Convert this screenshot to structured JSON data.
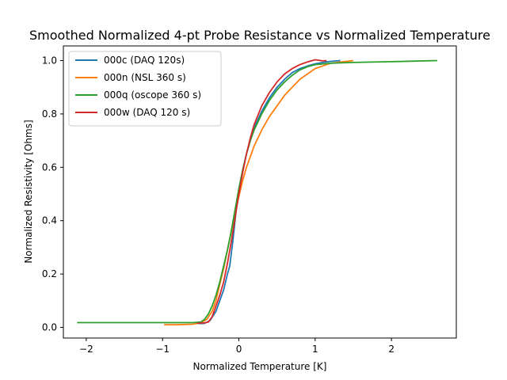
{
  "chart_data": {
    "type": "line",
    "title": "Smoothed Normalized 4-pt Probe Resistance vs Normalized Temperature",
    "xlabel": "Normalized Temperature [K]",
    "ylabel": "Normalized Resistivity [Ohms]",
    "xlim": [
      -2.3,
      2.85
    ],
    "ylim": [
      -0.04,
      1.055
    ],
    "xticks": [
      -2,
      -1,
      0,
      1,
      2
    ],
    "xtick_labels": [
      "−2",
      "−1",
      "0",
      "1",
      "2"
    ],
    "yticks": [
      0.0,
      0.2,
      0.4,
      0.6,
      0.8,
      1.0
    ],
    "ytick_labels": [
      "0.0",
      "0.2",
      "0.4",
      "0.6",
      "0.8",
      "1.0"
    ],
    "grid": false,
    "legend_position": "top-left",
    "series": [
      {
        "name": "000c (DAQ 120s)",
        "color": "#1f77b4",
        "points": [
          [
            -0.52,
            0.014
          ],
          [
            -0.45,
            0.015
          ],
          [
            -0.38,
            0.025
          ],
          [
            -0.3,
            0.06
          ],
          [
            -0.25,
            0.1
          ],
          [
            -0.2,
            0.14
          ],
          [
            -0.15,
            0.2
          ],
          [
            -0.12,
            0.23
          ],
          [
            -0.08,
            0.32
          ],
          [
            -0.05,
            0.4
          ],
          [
            -0.02,
            0.48
          ],
          [
            0.02,
            0.54
          ],
          [
            0.06,
            0.6
          ],
          [
            0.1,
            0.65
          ],
          [
            0.15,
            0.7
          ],
          [
            0.22,
            0.76
          ],
          [
            0.3,
            0.81
          ],
          [
            0.4,
            0.86
          ],
          [
            0.5,
            0.9
          ],
          [
            0.6,
            0.93
          ],
          [
            0.7,
            0.955
          ],
          [
            0.8,
            0.97
          ],
          [
            0.9,
            0.98
          ],
          [
            1.0,
            0.988
          ],
          [
            1.1,
            0.993
          ],
          [
            1.2,
            0.997
          ],
          [
            1.33,
            1.0
          ]
        ]
      },
      {
        "name": "000n (NSL 360 s)",
        "color": "#ff7f0e",
        "points": [
          [
            -0.98,
            0.01
          ],
          [
            -0.8,
            0.01
          ],
          [
            -0.6,
            0.012
          ],
          [
            -0.5,
            0.018
          ],
          [
            -0.42,
            0.03
          ],
          [
            -0.35,
            0.06
          ],
          [
            -0.3,
            0.1
          ],
          [
            -0.25,
            0.16
          ],
          [
            -0.2,
            0.22
          ],
          [
            -0.15,
            0.29
          ],
          [
            -0.1,
            0.36
          ],
          [
            -0.05,
            0.43
          ],
          [
            0.0,
            0.49
          ],
          [
            0.05,
            0.55
          ],
          [
            0.1,
            0.6
          ],
          [
            0.15,
            0.64
          ],
          [
            0.2,
            0.68
          ],
          [
            0.3,
            0.74
          ],
          [
            0.4,
            0.79
          ],
          [
            0.5,
            0.83
          ],
          [
            0.6,
            0.87
          ],
          [
            0.7,
            0.9
          ],
          [
            0.8,
            0.93
          ],
          [
            0.9,
            0.95
          ],
          [
            1.0,
            0.97
          ],
          [
            1.1,
            0.98
          ],
          [
            1.2,
            0.99
          ],
          [
            1.35,
            0.995
          ],
          [
            1.5,
            1.0
          ]
        ]
      },
      {
        "name": "000q (oscope 360 s)",
        "color": "#2ca02c",
        "points": [
          [
            -2.12,
            0.018
          ],
          [
            -1.5,
            0.018
          ],
          [
            -1.0,
            0.018
          ],
          [
            -0.6,
            0.018
          ],
          [
            -0.5,
            0.02
          ],
          [
            -0.45,
            0.03
          ],
          [
            -0.4,
            0.05
          ],
          [
            -0.35,
            0.08
          ],
          [
            -0.3,
            0.12
          ],
          [
            -0.25,
            0.17
          ],
          [
            -0.2,
            0.23
          ],
          [
            -0.15,
            0.29
          ],
          [
            -0.1,
            0.36
          ],
          [
            -0.05,
            0.44
          ],
          [
            0.0,
            0.52
          ],
          [
            0.05,
            0.59
          ],
          [
            0.1,
            0.65
          ],
          [
            0.15,
            0.7
          ],
          [
            0.2,
            0.74
          ],
          [
            0.3,
            0.8
          ],
          [
            0.4,
            0.85
          ],
          [
            0.5,
            0.89
          ],
          [
            0.6,
            0.92
          ],
          [
            0.7,
            0.945
          ],
          [
            0.8,
            0.965
          ],
          [
            0.9,
            0.977
          ],
          [
            1.0,
            0.985
          ],
          [
            1.2,
            0.99
          ],
          [
            1.5,
            0.993
          ],
          [
            2.0,
            0.996
          ],
          [
            2.6,
            1.0
          ]
        ]
      },
      {
        "name": "000w (DAQ 120 s)",
        "color": "#d62728",
        "points": [
          [
            -0.55,
            0.015
          ],
          [
            -0.45,
            0.017
          ],
          [
            -0.4,
            0.02
          ],
          [
            -0.35,
            0.04
          ],
          [
            -0.3,
            0.08
          ],
          [
            -0.25,
            0.12
          ],
          [
            -0.2,
            0.17
          ],
          [
            -0.15,
            0.24
          ],
          [
            -0.1,
            0.32
          ],
          [
            -0.05,
            0.41
          ],
          [
            0.0,
            0.5
          ],
          [
            0.05,
            0.58
          ],
          [
            0.1,
            0.65
          ],
          [
            0.15,
            0.71
          ],
          [
            0.2,
            0.76
          ],
          [
            0.3,
            0.83
          ],
          [
            0.4,
            0.88
          ],
          [
            0.5,
            0.92
          ],
          [
            0.6,
            0.95
          ],
          [
            0.7,
            0.97
          ],
          [
            0.8,
            0.985
          ],
          [
            0.9,
            0.995
          ],
          [
            1.0,
            1.003
          ],
          [
            1.1,
            0.999
          ],
          [
            1.15,
            1.0
          ]
        ]
      }
    ]
  }
}
